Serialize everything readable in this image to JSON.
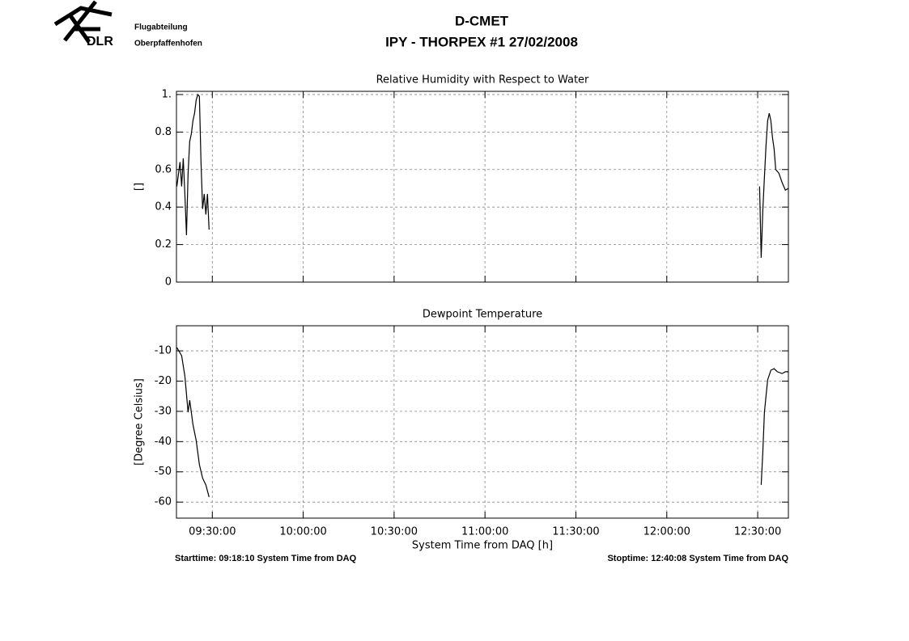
{
  "header": {
    "logo": "DLR",
    "org": "Flugabteilung",
    "location": "Oberpfaffenhofen",
    "title": "D-CMET",
    "subtitle": "IPY - THORPEX #1   27/02/2008"
  },
  "footer": {
    "start": "Starttime: 09:18:10 System Time from DAQ",
    "stop": "Stoptime: 12:40:08 System Time from DAQ"
  },
  "chart_data": [
    {
      "type": "line",
      "title": "Relative Humidity with Respect to Water",
      "y_label": "[]",
      "color": "#000000",
      "grid": true,
      "x": [
        9.305,
        9.3224,
        9.3313,
        9.3402,
        9.349,
        9.3579,
        9.3668,
        9.3757,
        9.3846,
        9.3934,
        9.4023,
        9.4112,
        9.4201,
        9.429,
        9.4378,
        9.4467,
        9.4556,
        9.4645,
        9.4734,
        9.4822,
        11.0,
        12.5104,
        12.5192,
        12.5281,
        12.537,
        12.5459,
        12.5548,
        12.5636,
        12.5725,
        12.5814,
        12.5903,
        12.5992,
        12.6169,
        12.6346,
        12.6524,
        12.6689
      ],
      "values": [
        0.51,
        0.64,
        0.51,
        0.66,
        0.47,
        0.25,
        0.58,
        0.75,
        0.79,
        0.86,
        0.9,
        0.97,
        1.0,
        0.99,
        0.64,
        0.39,
        0.47,
        0.36,
        0.47,
        0.28,
        null,
        0.51,
        0.13,
        0.38,
        0.56,
        0.73,
        0.86,
        0.9,
        0.86,
        0.77,
        0.71,
        0.6,
        0.58,
        0.53,
        0.49,
        0.5
      ],
      "xlim": [
        9.3028,
        12.6689
      ],
      "xticks": [
        9.5,
        10,
        10.5,
        11,
        11.5,
        12,
        12.5
      ],
      "ylim": [
        0,
        1.017
      ],
      "yticks": [
        0,
        0.2,
        0.4,
        0.6,
        0.8,
        {
          "value": 1,
          "label": "1."
        }
      ]
    },
    {
      "type": "line",
      "title": "Dewpoint Temperature",
      "y_label": "[Degree Celsius]",
      "x_label": "System Time from DAQ [h]",
      "color": "#000000",
      "grid": true,
      "x": [
        9.305,
        9.3313,
        9.349,
        9.3668,
        9.3757,
        9.3934,
        9.4112,
        9.429,
        9.4467,
        9.4645,
        9.4822,
        11.0,
        12.5192,
        12.5281,
        12.537,
        12.5459,
        12.5548,
        12.5725,
        12.5903,
        12.608,
        12.6346,
        12.6524,
        12.6689
      ],
      "values": [
        -8.9,
        -11.6,
        -18.3,
        -30.3,
        -26.3,
        -34.3,
        -39.6,
        -47.6,
        -52.1,
        -54.3,
        -58.3,
        null,
        -54.3,
        -43.6,
        -30.3,
        -24.9,
        -19.6,
        -16.4,
        -15.9,
        -16.9,
        -17.5,
        -16.9,
        -16.9
      ],
      "xlim": [
        9.3028,
        12.6689
      ],
      "xticks": [
        {
          "value": 9.5,
          "label": "09:30:00"
        },
        {
          "value": 10,
          "label": "10:00:00"
        },
        {
          "value": 10.5,
          "label": "10:30:00"
        },
        {
          "value": 11,
          "label": "11:00:00"
        },
        {
          "value": 11.5,
          "label": "11:30:00"
        },
        {
          "value": 12,
          "label": "12:00:00"
        },
        {
          "value": 12.5,
          "label": "12:30:00"
        }
      ],
      "ylim": [
        -65.3,
        -1.7
      ],
      "yticks": [
        -60,
        -50,
        -40,
        -30,
        -20,
        -10
      ]
    }
  ]
}
